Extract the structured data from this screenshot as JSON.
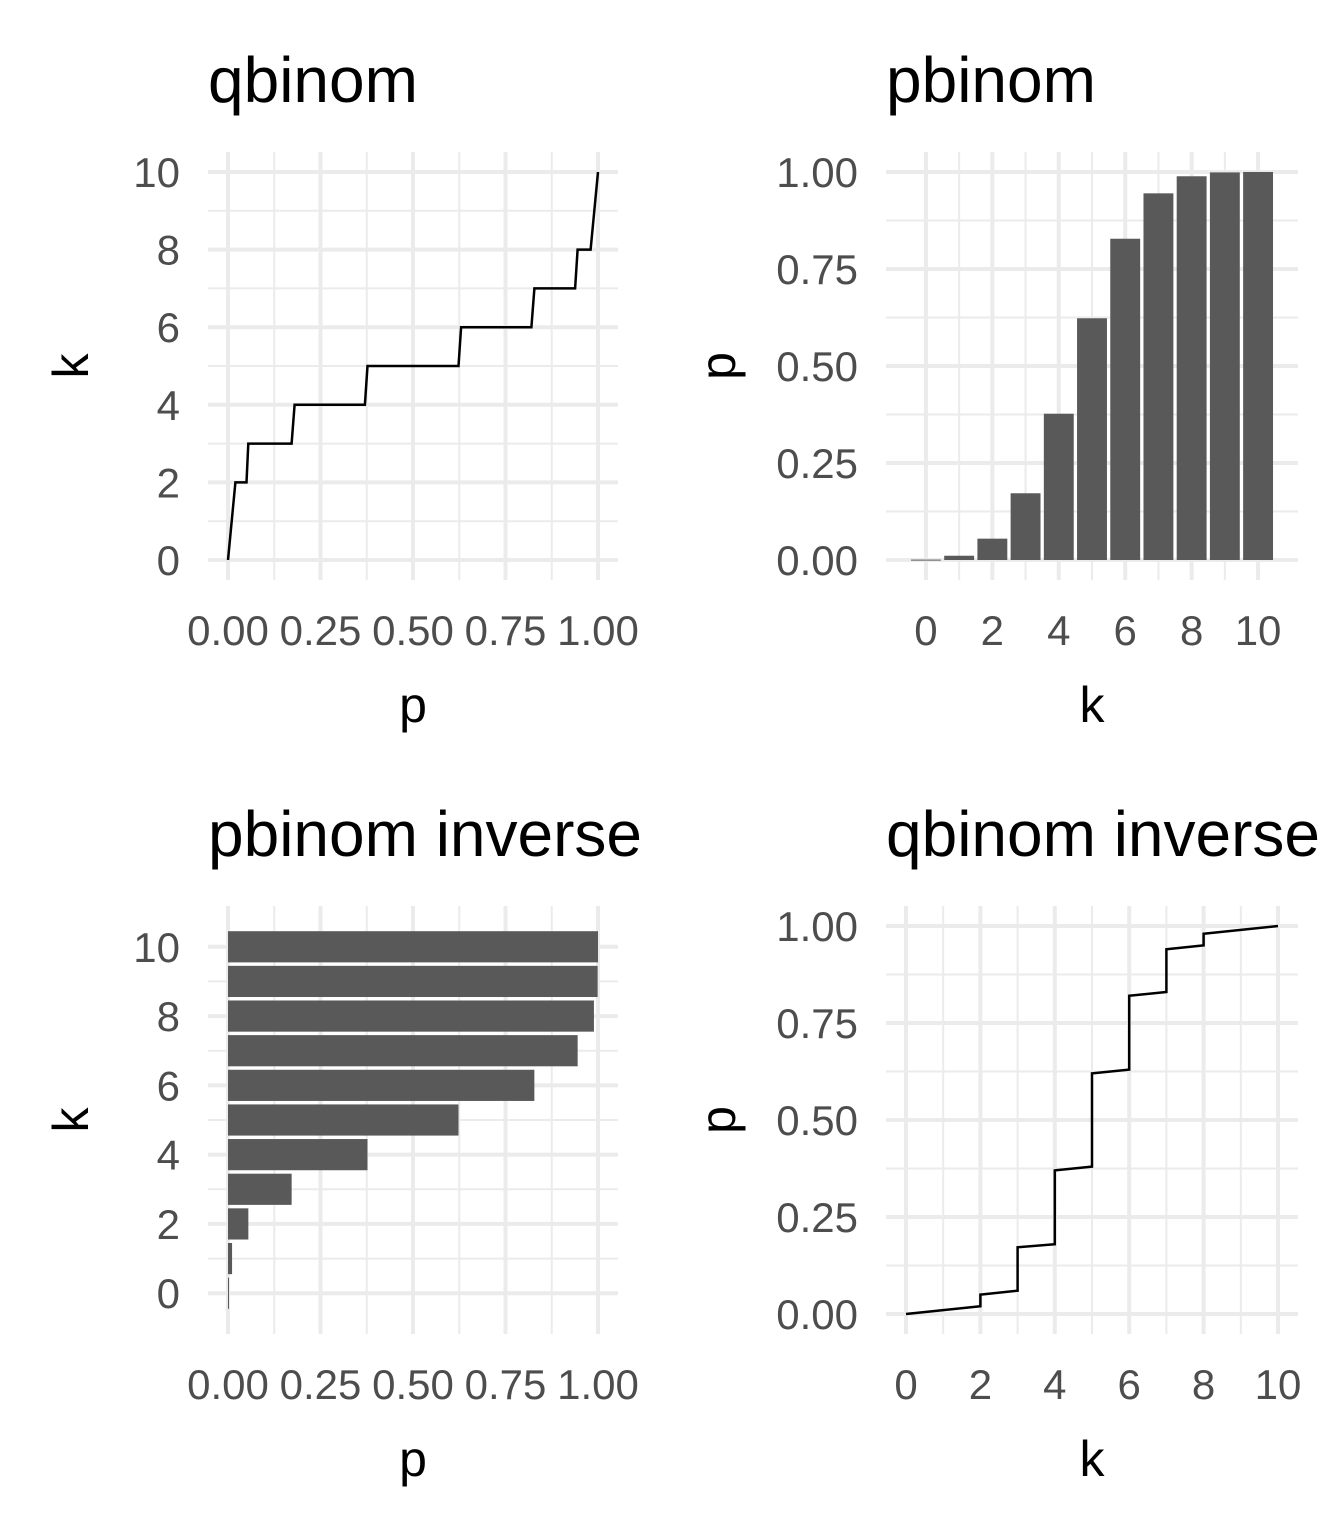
{
  "chart_data": [
    {
      "type": "line",
      "title": "qbinom",
      "xlabel": "p",
      "ylabel": "k",
      "xlim": [
        0,
        1
      ],
      "ylim": [
        0,
        10
      ],
      "x_ticks": [
        "0.00",
        "0.25",
        "0.50",
        "0.75",
        "1.00"
      ],
      "y_ticks": [
        "0",
        "2",
        "4",
        "6",
        "8",
        "10"
      ],
      "grid": true,
      "color": "#000000",
      "points": [
        [
          0.0,
          0
        ],
        [
          0.02,
          2
        ],
        [
          0.05,
          2
        ],
        [
          0.055,
          3
        ],
        [
          0.172,
          3
        ],
        [
          0.18,
          4
        ],
        [
          0.37,
          4
        ],
        [
          0.377,
          5
        ],
        [
          0.623,
          5
        ],
        [
          0.63,
          6
        ],
        [
          0.82,
          6
        ],
        [
          0.828,
          7
        ],
        [
          0.938,
          7
        ],
        [
          0.945,
          8
        ],
        [
          0.98,
          8
        ],
        [
          1.0,
          10
        ]
      ]
    },
    {
      "type": "bar",
      "title": "pbinom",
      "xlabel": "k",
      "ylabel": "p",
      "xlim": [
        -0.6,
        10.6
      ],
      "ylim": [
        0,
        1
      ],
      "x_ticks": [
        "0",
        "2",
        "4",
        "6",
        "8",
        "10"
      ],
      "y_ticks": [
        "0.00",
        "0.25",
        "0.50",
        "0.75",
        "1.00"
      ],
      "grid": true,
      "color": "#595959",
      "categories": [
        0,
        1,
        2,
        3,
        4,
        5,
        6,
        7,
        8,
        9,
        10
      ],
      "values": [
        0.001,
        0.011,
        0.055,
        0.172,
        0.377,
        0.623,
        0.828,
        0.945,
        0.989,
        0.999,
        1.0
      ]
    },
    {
      "type": "bar",
      "orientation": "horizontal",
      "title": "pbinom inverse",
      "xlabel": "p",
      "ylabel": "k",
      "xlim": [
        0,
        1
      ],
      "ylim": [
        -0.6,
        10.6
      ],
      "x_ticks": [
        "0.00",
        "0.25",
        "0.50",
        "0.75",
        "1.00"
      ],
      "y_ticks": [
        "0",
        "2",
        "4",
        "6",
        "8",
        "10"
      ],
      "grid": true,
      "color": "#595959",
      "categories": [
        0,
        1,
        2,
        3,
        4,
        5,
        6,
        7,
        8,
        9,
        10
      ],
      "values": [
        0.001,
        0.011,
        0.055,
        0.172,
        0.377,
        0.623,
        0.828,
        0.945,
        0.989,
        0.999,
        1.0
      ]
    },
    {
      "type": "line",
      "title": "qbinom inverse",
      "xlabel": "k",
      "ylabel": "p",
      "xlim": [
        0,
        10
      ],
      "ylim": [
        0,
        1
      ],
      "x_ticks": [
        "0",
        "2",
        "4",
        "6",
        "8",
        "10"
      ],
      "y_ticks": [
        "0.00",
        "0.25",
        "0.50",
        "0.75",
        "1.00"
      ],
      "grid": true,
      "color": "#000000",
      "points": [
        [
          0,
          0.0
        ],
        [
          2,
          0.02
        ],
        [
          2,
          0.05
        ],
        [
          3,
          0.06
        ],
        [
          3,
          0.172
        ],
        [
          4,
          0.18
        ],
        [
          4,
          0.37
        ],
        [
          5,
          0.38
        ],
        [
          5,
          0.62
        ],
        [
          6,
          0.63
        ],
        [
          6,
          0.82
        ],
        [
          7,
          0.83
        ],
        [
          7,
          0.94
        ],
        [
          8,
          0.95
        ],
        [
          8,
          0.98
        ],
        [
          10,
          1.0
        ]
      ]
    }
  ]
}
